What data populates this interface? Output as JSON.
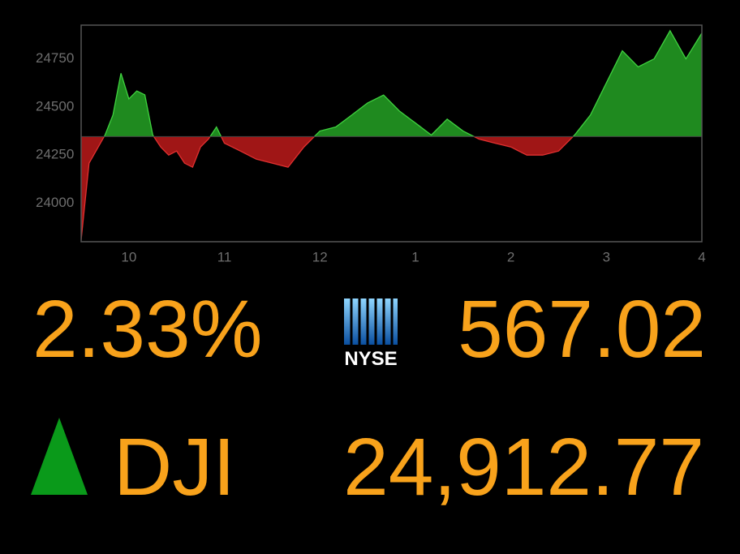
{
  "chart_data": {
    "type": "line",
    "x": [
      9.5,
      9.583,
      9.75,
      9.833,
      9.917,
      10,
      10.083,
      10.167,
      10.25,
      10.333,
      10.417,
      10.5,
      10.583,
      10.667,
      10.75,
      10.833,
      10.917,
      11,
      11.167,
      11.333,
      11.5,
      11.667,
      11.833,
      12,
      12.167,
      12.333,
      12.5,
      12.667,
      12.833,
      13,
      13.167,
      13.333,
      13.5,
      13.667,
      13.833,
      14,
      14.167,
      14.333,
      14.5,
      14.667,
      14.833,
      15,
      15.167,
      15.333,
      15.5,
      15.667,
      15.833,
      16
    ],
    "values": [
      23810,
      24208,
      24354,
      24458,
      24675,
      24542,
      24583,
      24563,
      24354,
      24292,
      24250,
      24271,
      24208,
      24187,
      24292,
      24333,
      24396,
      24312,
      24271,
      24229,
      24208,
      24187,
      24292,
      24375,
      24396,
      24458,
      24521,
      24562,
      24479,
      24417,
      24354,
      24437,
      24375,
      24333,
      24312,
      24292,
      24250,
      24250,
      24271,
      24354,
      24458,
      24625,
      24792,
      24708,
      24750,
      24896,
      24750,
      24884
    ],
    "baseline": 24346,
    "up_color": "#1f8a1f",
    "down_color": "#a01616",
    "xlim": [
      9.5,
      16
    ],
    "ylim": [
      23800,
      24925
    ],
    "xticks": [
      10,
      11,
      12,
      {
        "value": 13,
        "label": "1"
      },
      {
        "value": 14,
        "label": "2"
      },
      {
        "value": 15,
        "label": "3"
      },
      {
        "value": 16,
        "label": "4"
      }
    ],
    "yticks": [
      24000,
      24250,
      24500,
      24750
    ]
  },
  "ticker": {
    "change_percent": "2.33%",
    "exchange": "NYSE",
    "change_points": "567.02",
    "symbol": "DJI",
    "price": "24,912.77"
  }
}
